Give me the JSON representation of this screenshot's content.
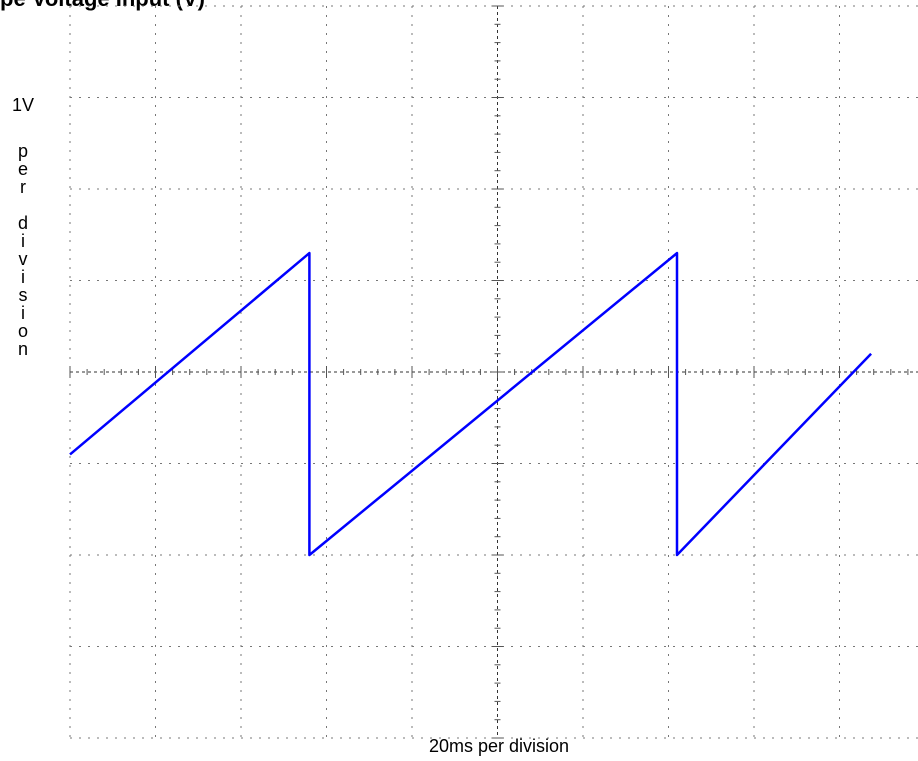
{
  "chart_data": {
    "type": "line",
    "title": "pe Voltage Input (V)",
    "xlabel": "20ms per division",
    "ylabel": "1V per division",
    "y_label_head": "1V",
    "y_label_tail": [
      "p",
      "e",
      "r",
      "",
      "d",
      "i",
      "v",
      "i",
      "s",
      "i",
      "o",
      "n"
    ],
    "x_divisions": 10,
    "y_divisions": 8,
    "grid": true,
    "grid_style": "dotted",
    "legend": "none",
    "series": [
      {
        "color": "#0000ff",
        "x": [
          0,
          2.8,
          2.8,
          7.1,
          7.1,
          9.37
        ],
        "y": [
          -0.9,
          1.3,
          -2.0,
          1.3,
          -2.0,
          0.2
        ]
      }
    ]
  }
}
